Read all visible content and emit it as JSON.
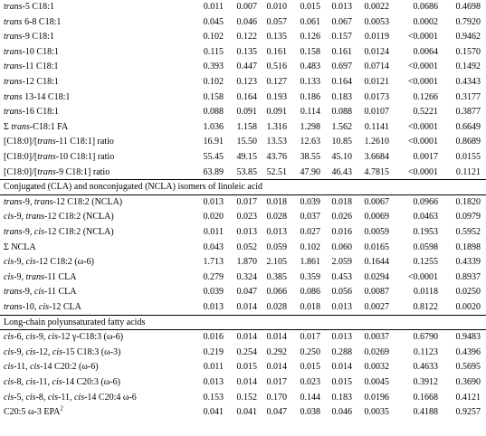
{
  "table": {
    "rows": [
      {
        "kind": "data",
        "label": [
          {
            "t": "trans",
            "i": true
          },
          {
            "t": "-5 C18:1"
          }
        ],
        "values": [
          "0.011",
          "0.007",
          "0.010",
          "0.015",
          "0.013",
          "0.0022",
          "0.0686",
          "0.4698"
        ]
      },
      {
        "kind": "data",
        "label": [
          {
            "t": "trans",
            "i": true
          },
          {
            "t": " 6-8 C18:1"
          }
        ],
        "values": [
          "0.045",
          "0.046",
          "0.057",
          "0.061",
          "0.067",
          "0.0053",
          "0.0002",
          "0.7920"
        ]
      },
      {
        "kind": "data",
        "label": [
          {
            "t": "trans",
            "i": true
          },
          {
            "t": "-9 C18:1"
          }
        ],
        "values": [
          "0.102",
          "0.122",
          "0.135",
          "0.126",
          "0.157",
          "0.0119",
          "<0.0001",
          "0.9462"
        ]
      },
      {
        "kind": "data",
        "label": [
          {
            "t": "trans",
            "i": true
          },
          {
            "t": "-10 C18:1"
          }
        ],
        "values": [
          "0.115",
          "0.135",
          "0.161",
          "0.158",
          "0.161",
          "0.0124",
          "0.0064",
          "0.1570"
        ]
      },
      {
        "kind": "data",
        "label": [
          {
            "t": "trans",
            "i": true
          },
          {
            "t": "-11 C18:1"
          }
        ],
        "values": [
          "0.393",
          "0.447",
          "0.516",
          "0.483",
          "0.697",
          "0.0714",
          "<0.0001",
          "0.1492"
        ]
      },
      {
        "kind": "data",
        "label": [
          {
            "t": "trans",
            "i": true
          },
          {
            "t": "-12 C18:1"
          }
        ],
        "values": [
          "0.102",
          "0.123",
          "0.127",
          "0.133",
          "0.164",
          "0.0121",
          "<0.0001",
          "0.4343"
        ]
      },
      {
        "kind": "data",
        "label": [
          {
            "t": "trans",
            "i": true
          },
          {
            "t": " 13-14 C18:1"
          }
        ],
        "values": [
          "0.158",
          "0.164",
          "0.193",
          "0.186",
          "0.183",
          "0.0173",
          "0.1266",
          "0.3177"
        ]
      },
      {
        "kind": "data",
        "label": [
          {
            "t": "trans",
            "i": true
          },
          {
            "t": "-16 C18:1"
          }
        ],
        "values": [
          "0.088",
          "0.091",
          "0.091",
          "0.114",
          "0.088",
          "0.0107",
          "0.5221",
          "0.3877"
        ]
      },
      {
        "kind": "data",
        "label": [
          {
            "t": "Σ "
          },
          {
            "t": "trans",
            "i": true
          },
          {
            "t": "-C18:1 FA"
          }
        ],
        "values": [
          "1.036",
          "1.158",
          "1.316",
          "1.298",
          "1.562",
          "0.1141",
          "<0.0001",
          "0.6649"
        ]
      },
      {
        "kind": "data",
        "label": [
          {
            "t": "[C18:0]/["
          },
          {
            "t": "trans",
            "i": true
          },
          {
            "t": "-11 C18:1] ratio"
          }
        ],
        "values": [
          "16.91",
          "15.50",
          "13.53",
          "12.63",
          "10.85",
          "1.2610",
          "<0.0001",
          "0.8689"
        ]
      },
      {
        "kind": "data",
        "label": [
          {
            "t": "[C18:0]/["
          },
          {
            "t": "trans",
            "i": true
          },
          {
            "t": "-10 C18:1] ratio"
          }
        ],
        "values": [
          "55.45",
          "49.15",
          "43.76",
          "38.55",
          "45.10",
          "3.6684",
          "0.0017",
          "0.0155"
        ]
      },
      {
        "kind": "data",
        "label": [
          {
            "t": "[C18:0]/["
          },
          {
            "t": "trans",
            "i": true
          },
          {
            "t": "-9 C18:1] ratio"
          }
        ],
        "values": [
          "63.89",
          "53.85",
          "52.51",
          "47.90",
          "46.43",
          "4.7815",
          "<0.0001",
          "0.1121"
        ]
      },
      {
        "kind": "section",
        "label": "Conjugated (CLA) and nonconjugated (NCLA) isomers of linoleic acid"
      },
      {
        "kind": "data",
        "label": [
          {
            "t": "trans",
            "i": true
          },
          {
            "t": "-9, "
          },
          {
            "t": "trans",
            "i": true
          },
          {
            "t": "-12 C18:2 (NCLA)"
          }
        ],
        "values": [
          "0.013",
          "0.017",
          "0.018",
          "0.039",
          "0.018",
          "0.0067",
          "0.0966",
          "0.1820"
        ]
      },
      {
        "kind": "data",
        "label": [
          {
            "t": "cis",
            "i": true
          },
          {
            "t": "-9, "
          },
          {
            "t": "trans",
            "i": true
          },
          {
            "t": "-12 C18:2 (NCLA)"
          }
        ],
        "values": [
          "0.020",
          "0.023",
          "0.028",
          "0.037",
          "0.026",
          "0.0069",
          "0.0463",
          "0.0979"
        ]
      },
      {
        "kind": "data",
        "label": [
          {
            "t": "trans",
            "i": true
          },
          {
            "t": "-9, "
          },
          {
            "t": "cis",
            "i": true
          },
          {
            "t": "-12 C18:2 (NCLA)"
          }
        ],
        "values": [
          "0.011",
          "0.013",
          "0.013",
          "0.027",
          "0.016",
          "0.0059",
          "0.1953",
          "0.5952"
        ]
      },
      {
        "kind": "data",
        "label": [
          {
            "t": "Σ NCLA"
          }
        ],
        "values": [
          "0.043",
          "0.052",
          "0.059",
          "0.102",
          "0.060",
          "0.0165",
          "0.0598",
          "0.1898"
        ]
      },
      {
        "kind": "data",
        "label": [
          {
            "t": "cis",
            "i": true
          },
          {
            "t": "-9, "
          },
          {
            "t": "cis",
            "i": true
          },
          {
            "t": "-12 C18:2 (ω-6)"
          }
        ],
        "values": [
          "1.713",
          "1.870",
          "2.105",
          "1.861",
          "2.059",
          "0.1644",
          "0.1255",
          "0.4339"
        ]
      },
      {
        "kind": "data",
        "label": [
          {
            "t": "cis",
            "i": true
          },
          {
            "t": "-9, "
          },
          {
            "t": "trans",
            "i": true
          },
          {
            "t": "-11 CLA"
          }
        ],
        "values": [
          "0.279",
          "0.324",
          "0.385",
          "0.359",
          "0.453",
          "0.0294",
          "<0.0001",
          "0.8937"
        ]
      },
      {
        "kind": "data",
        "label": [
          {
            "t": "trans",
            "i": true
          },
          {
            "t": "-9, "
          },
          {
            "t": "cis",
            "i": true
          },
          {
            "t": "-11 CLA"
          }
        ],
        "values": [
          "0.039",
          "0.047",
          "0.066",
          "0.086",
          "0.056",
          "0.0087",
          "0.0118",
          "0.0250"
        ]
      },
      {
        "kind": "data",
        "label": [
          {
            "t": "trans",
            "i": true
          },
          {
            "t": "-10, "
          },
          {
            "t": "cis",
            "i": true
          },
          {
            "t": "-12 CLA"
          }
        ],
        "values": [
          "0.013",
          "0.014",
          "0.028",
          "0.018",
          "0.013",
          "0.0027",
          "0.8122",
          "0.0020"
        ]
      },
      {
        "kind": "section",
        "label": "Long-chain polyunsaturated fatty acids"
      },
      {
        "kind": "data",
        "label": [
          {
            "t": "cis",
            "i": true
          },
          {
            "t": "-6, "
          },
          {
            "t": "cis",
            "i": true
          },
          {
            "t": "-9, "
          },
          {
            "t": "cis",
            "i": true
          },
          {
            "t": "-12 γ-C18:3 (ω-6)"
          }
        ],
        "values": [
          "0.016",
          "0.014",
          "0.014",
          "0.017",
          "0.013",
          "0.0037",
          "0.6790",
          "0.9483"
        ]
      },
      {
        "kind": "data",
        "label": [
          {
            "t": "cis",
            "i": true
          },
          {
            "t": "-9, "
          },
          {
            "t": "cis",
            "i": true
          },
          {
            "t": "-12, "
          },
          {
            "t": "cis",
            "i": true
          },
          {
            "t": "-15 C18:3 (ω-3)"
          }
        ],
        "values": [
          "0.219",
          "0.254",
          "0.292",
          "0.250",
          "0.288",
          "0.0269",
          "0.1123",
          "0.4396"
        ]
      },
      {
        "kind": "data",
        "label": [
          {
            "t": "cis",
            "i": true
          },
          {
            "t": "-11, "
          },
          {
            "t": "cis",
            "i": true
          },
          {
            "t": "-14 C20:2  (ω-6)"
          }
        ],
        "values": [
          "0.011",
          "0.015",
          "0.014",
          "0.015",
          "0.014",
          "0.0032",
          "0.4633",
          "0.5695"
        ]
      },
      {
        "kind": "data",
        "label": [
          {
            "t": "cis",
            "i": true
          },
          {
            "t": "-8, "
          },
          {
            "t": "cis",
            "i": true
          },
          {
            "t": "-11, "
          },
          {
            "t": "cis",
            "i": true
          },
          {
            "t": "-14 C20:3 (ω-6)"
          }
        ],
        "values": [
          "0.013",
          "0.014",
          "0.017",
          "0.023",
          "0.015",
          "0.0045",
          "0.3912",
          "0.3690"
        ]
      },
      {
        "kind": "data",
        "label": [
          {
            "t": "cis",
            "i": true
          },
          {
            "t": "-5, "
          },
          {
            "t": "cis",
            "i": true
          },
          {
            "t": "-8, "
          },
          {
            "t": "cis",
            "i": true
          },
          {
            "t": "-11, "
          },
          {
            "t": "cis",
            "i": true
          },
          {
            "t": "-14 C20:4 ω-6"
          }
        ],
        "values": [
          "0.153",
          "0.152",
          "0.170",
          "0.144",
          "0.183",
          "0.0196",
          "0.1668",
          "0.4121"
        ]
      },
      {
        "kind": "data",
        "label": [
          {
            "t": "C20:5 ω-3 EPA"
          },
          {
            "t": "2",
            "sup": true
          }
        ],
        "values": [
          "0.041",
          "0.041",
          "0.047",
          "0.038",
          "0.046",
          "0.0035",
          "0.4188",
          "0.9257"
        ]
      }
    ]
  }
}
